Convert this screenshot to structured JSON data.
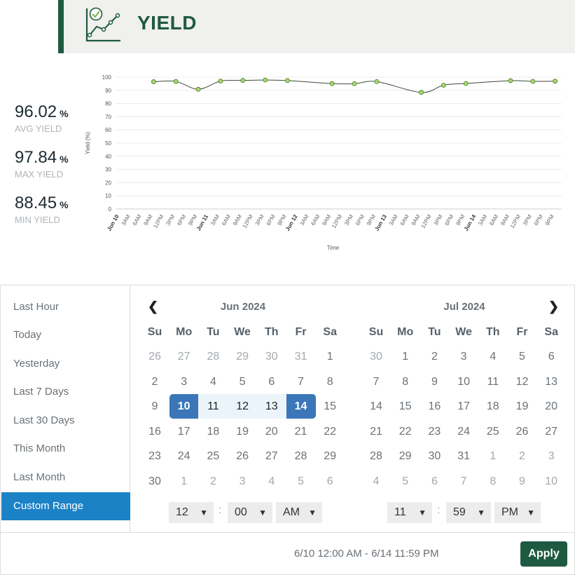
{
  "header": {
    "title": "YIELD",
    "icon": "yield-chart-icon"
  },
  "stats": [
    {
      "value": "96.02",
      "unit": "%",
      "label": "AVG YIELD"
    },
    {
      "value": "97.84",
      "unit": "%",
      "label": "MAX YIELD"
    },
    {
      "value": "88.45",
      "unit": "%",
      "label": "MIN YIELD"
    }
  ],
  "chart_data": {
    "type": "line",
    "xlabel": "Time",
    "ylabel": "Yield (%)",
    "ylim": [
      0,
      100
    ],
    "yticks": [
      0,
      10,
      20,
      30,
      40,
      50,
      60,
      70,
      80,
      90,
      100
    ],
    "xticks": [
      "Jun 10",
      "3AM",
      "6AM",
      "9AM",
      "12PM",
      "3PM",
      "6PM",
      "9PM",
      "Jun 11",
      "3AM",
      "6AM",
      "9AM",
      "12PM",
      "3PM",
      "6PM",
      "9PM",
      "Jun 12",
      "3AM",
      "6AM",
      "9AM",
      "12PM",
      "3PM",
      "6PM",
      "9PM",
      "Jun 13",
      "3AM",
      "6AM",
      "9AM",
      "12PM",
      "3PM",
      "6PM",
      "9PM",
      "Jun 14",
      "3AM",
      "6AM",
      "9AM",
      "12PM",
      "3PM",
      "6PM",
      "9PM"
    ],
    "bold_xticks": [
      "Jun 10",
      "Jun 11",
      "Jun 12",
      "Jun 13",
      "Jun 14"
    ],
    "points": [
      {
        "x": 3.1,
        "y": 96.5
      },
      {
        "x": 5.1,
        "y": 96.7
      },
      {
        "x": 7.1,
        "y": 90.8
      },
      {
        "x": 9.1,
        "y": 97.0
      },
      {
        "x": 11.1,
        "y": 97.5
      },
      {
        "x": 13.1,
        "y": 97.8
      },
      {
        "x": 15.1,
        "y": 97.4
      },
      {
        "x": 19.1,
        "y": 95.1
      },
      {
        "x": 21.1,
        "y": 95.0
      },
      {
        "x": 23.1,
        "y": 96.6
      },
      {
        "x": 27.1,
        "y": 88.4
      },
      {
        "x": 29.1,
        "y": 93.9
      },
      {
        "x": 31.1,
        "y": 95.2
      },
      {
        "x": 35.1,
        "y": 97.3
      },
      {
        "x": 37.1,
        "y": 96.8
      },
      {
        "x": 39.1,
        "y": 96.9
      }
    ],
    "line_color": "#3a4a3a",
    "marker_color": "#a6d96a",
    "grid": true
  },
  "ranges": [
    "Last Hour",
    "Today",
    "Yesterday",
    "Last 7 Days",
    "Last 30 Days",
    "This Month",
    "Last Month",
    "Custom Range"
  ],
  "active_range": "Custom Range",
  "calendars": [
    {
      "title": "Jun 2024",
      "dow": [
        "Su",
        "Mo",
        "Tu",
        "We",
        "Th",
        "Fr",
        "Sa"
      ],
      "weeks": [
        [
          "26",
          "27",
          "28",
          "29",
          "30",
          "31",
          "1"
        ],
        [
          "2",
          "3",
          "4",
          "5",
          "6",
          "7",
          "8"
        ],
        [
          "9",
          "10",
          "11",
          "12",
          "13",
          "14",
          "15"
        ],
        [
          "16",
          "17",
          "18",
          "19",
          "20",
          "21",
          "22"
        ],
        [
          "23",
          "24",
          "25",
          "26",
          "27",
          "28",
          "29"
        ],
        [
          "30",
          "1",
          "2",
          "3",
          "4",
          "5",
          "6"
        ]
      ],
      "hour": "12",
      "minute": "00",
      "ampm": "AM"
    },
    {
      "title": "Jul 2024",
      "dow": [
        "Su",
        "Mo",
        "Tu",
        "We",
        "Th",
        "Fr",
        "Sa"
      ],
      "weeks": [
        [
          "30",
          "1",
          "2",
          "3",
          "4",
          "5",
          "6"
        ],
        [
          "7",
          "8",
          "9",
          "10",
          "11",
          "12",
          "13"
        ],
        [
          "14",
          "15",
          "16",
          "17",
          "18",
          "19",
          "20"
        ],
        [
          "21",
          "22",
          "23",
          "24",
          "25",
          "26",
          "27"
        ],
        [
          "28",
          "29",
          "30",
          "31",
          "1",
          "2",
          "3"
        ],
        [
          "4",
          "5",
          "6",
          "7",
          "8",
          "9",
          "10"
        ]
      ],
      "hour": "11",
      "minute": "59",
      "ampm": "PM"
    }
  ],
  "selected_range_text": "6/10 12:00 AM - 6/14 11:59 PM",
  "apply_label": "Apply",
  "colors": {
    "brand": "#1e5a41",
    "active": "#1c82c6",
    "selected": "#3a76b8",
    "inrange": "#ebf4fa"
  }
}
